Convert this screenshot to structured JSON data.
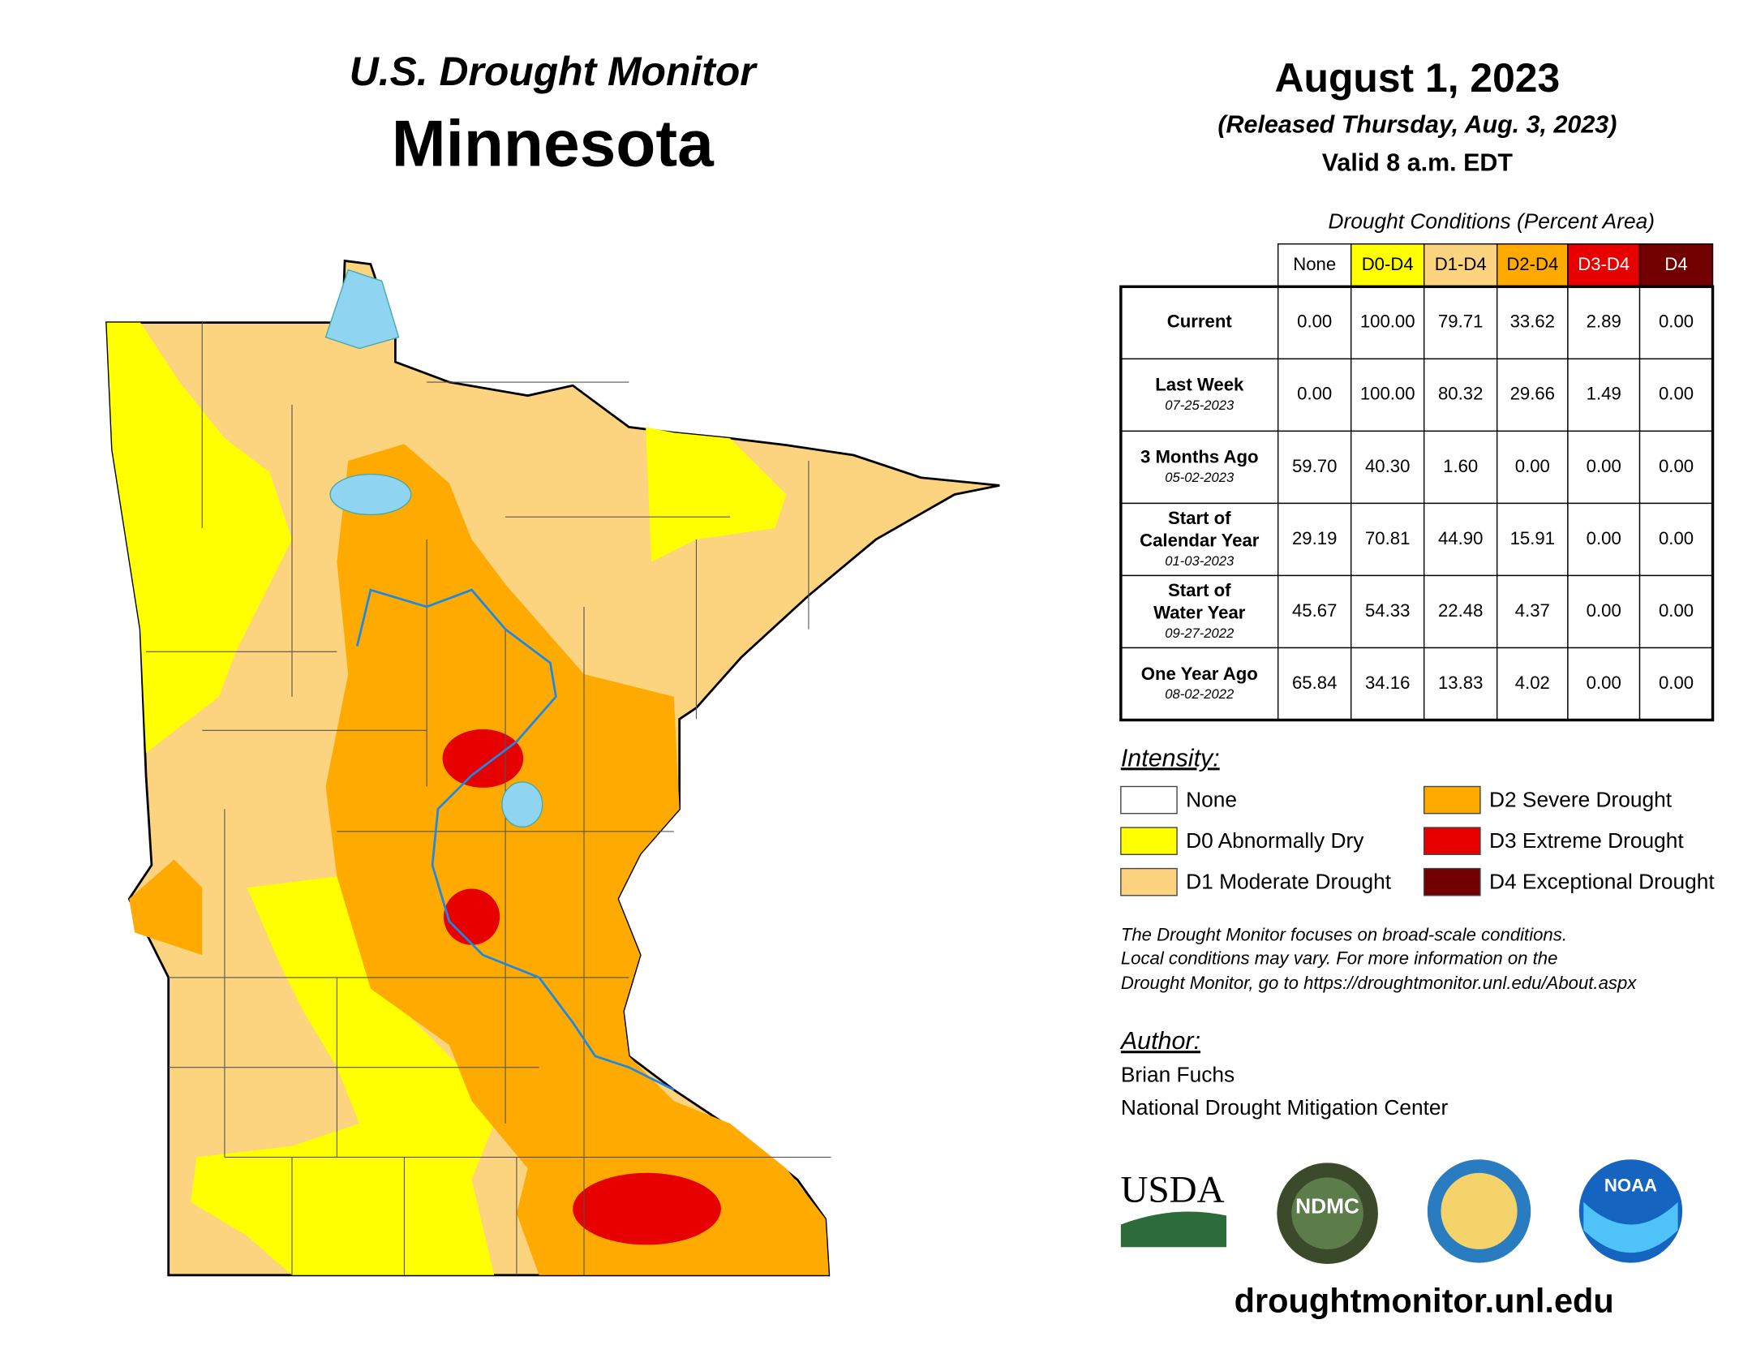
{
  "header": {
    "title": "U.S. Drought Monitor",
    "state": "Minnesota",
    "date": "August 1, 2023",
    "released": "(Released Thursday, Aug. 3, 2023)",
    "valid": "Valid 8 a.m. EDT"
  },
  "table": {
    "caption": "Drought Conditions (Percent Area)",
    "columns": [
      "None",
      "D0-D4",
      "D1-D4",
      "D2-D4",
      "D3-D4",
      "D4"
    ],
    "rows": [
      {
        "label": [
          "Current"
        ],
        "values": [
          "0.00",
          "100.00",
          "79.71",
          "33.62",
          "2.89",
          "0.00"
        ]
      },
      {
        "label": [
          "Last Week"
        ],
        "date": "07-25-2023",
        "values": [
          "0.00",
          "100.00",
          "80.32",
          "29.66",
          "1.49",
          "0.00"
        ]
      },
      {
        "label": [
          "3 Months Ago"
        ],
        "date": "05-02-2023",
        "values": [
          "59.70",
          "40.30",
          "1.60",
          "0.00",
          "0.00",
          "0.00"
        ]
      },
      {
        "label": [
          "Start of",
          "Calendar Year"
        ],
        "date": "01-03-2023",
        "values": [
          "29.19",
          "70.81",
          "44.90",
          "15.91",
          "0.00",
          "0.00"
        ]
      },
      {
        "label": [
          "Start of",
          "Water Year"
        ],
        "date": "09-27-2022",
        "values": [
          "45.67",
          "54.33",
          "22.48",
          "4.37",
          "0.00",
          "0.00"
        ]
      },
      {
        "label": [
          "One Year Ago"
        ],
        "date": "08-02-2022",
        "values": [
          "65.84",
          "34.16",
          "13.83",
          "4.02",
          "0.00",
          "0.00"
        ]
      }
    ]
  },
  "legend": {
    "title": "Intensity:",
    "items": [
      "None",
      "D0 Abnormally Dry",
      "D1 Moderate Drought",
      "D2 Severe Drought",
      "D3 Extreme Drought",
      "D4 Exceptional Drought"
    ]
  },
  "note": [
    "The Drought Monitor focuses on broad-scale conditions.",
    "Local conditions may vary. For more information on the",
    "Drought Monitor, go to https://droughtmonitor.unl.edu/About.aspx"
  ],
  "author": {
    "title": "Author:",
    "name": "Brian Fuchs",
    "org": "National Drought Mitigation Center"
  },
  "logos": {
    "usda": "USDA",
    "ndmc": "NDMC",
    "noaa": "NOAA"
  },
  "footer": "droughtmonitor.unl.edu"
}
